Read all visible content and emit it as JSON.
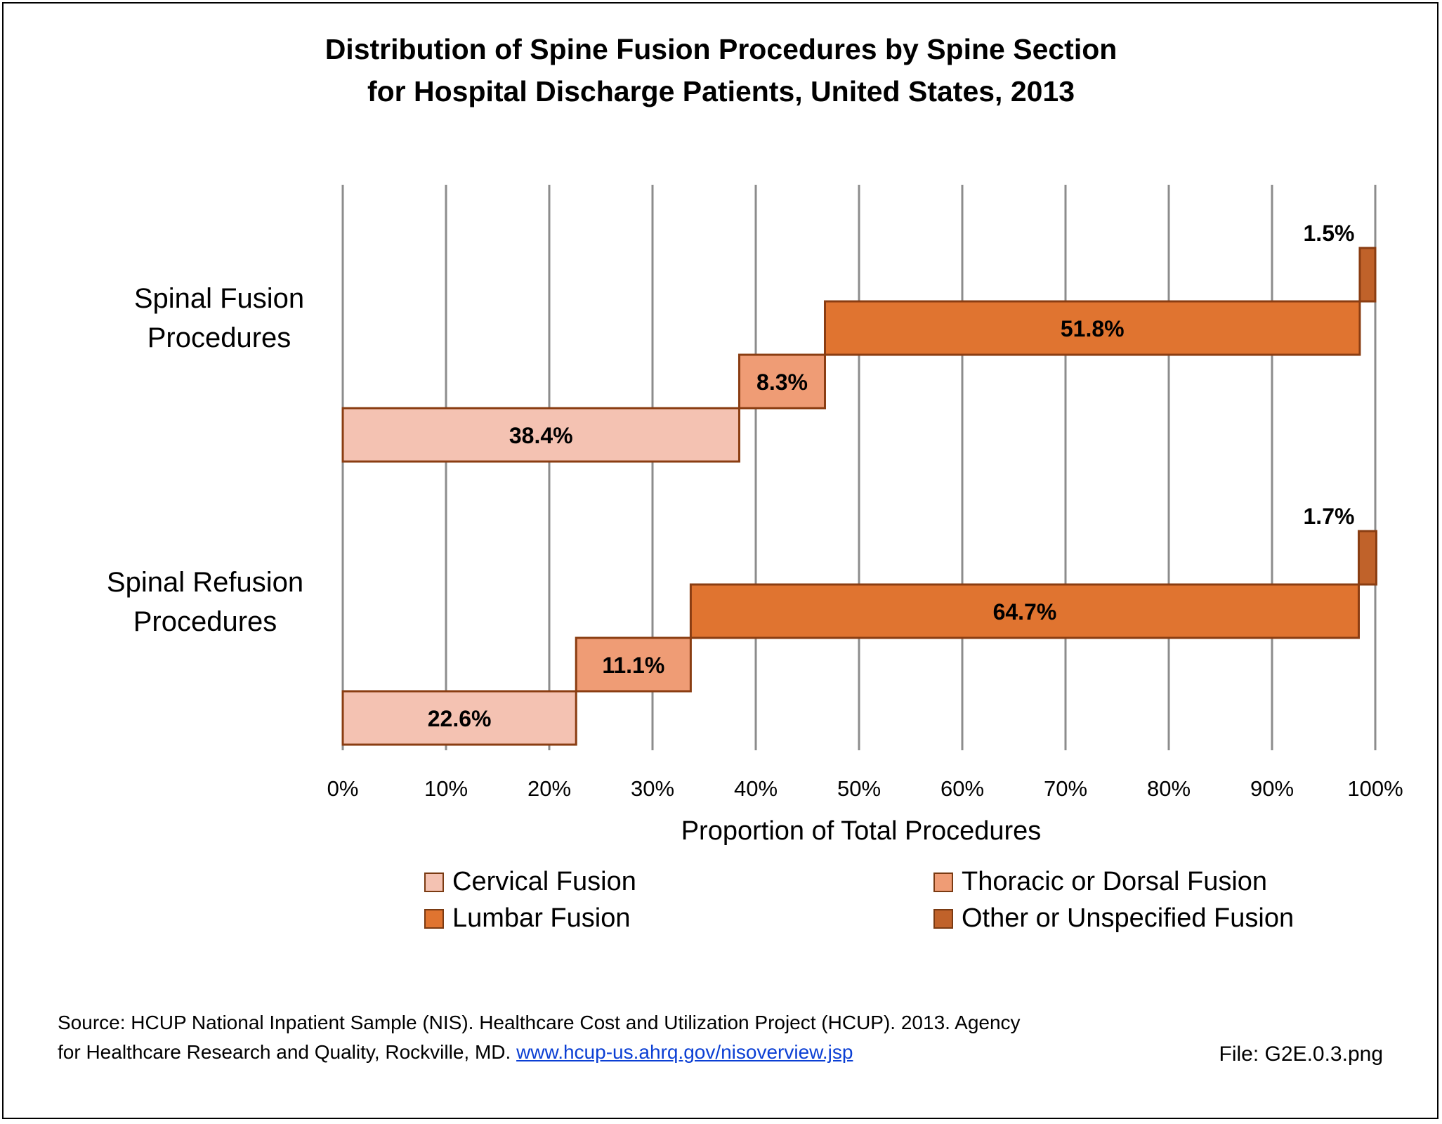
{
  "title_line1": "Distribution of Spine Fusion Procedures by Spine Section",
  "title_line2": "for Hospital Discharge Patients, United States, 2013",
  "chart_data": {
    "type": "bar",
    "orientation": "horizontal",
    "stacked": true,
    "categories": [
      "Spinal Fusion Procedures",
      "Spinal Refusion Procedures"
    ],
    "series": [
      {
        "name": "Cervical Fusion",
        "values": [
          38.4,
          22.6
        ],
        "color": "#f4c2b2"
      },
      {
        "name": "Thoracic or Dorsal Fusion",
        "values": [
          8.3,
          11.1
        ],
        "color": "#ef9c75"
      },
      {
        "name": "Lumbar Fusion",
        "values": [
          51.8,
          64.7
        ],
        "color": "#e07430"
      },
      {
        "name": "Other or Unspecified Fusion",
        "values": [
          1.5,
          1.7
        ],
        "color": "#c0622a"
      }
    ],
    "value_labels": [
      [
        "38.4%",
        "8.3%",
        "51.8%",
        "1.5%"
      ],
      [
        "22.6%",
        "11.1%",
        "64.7%",
        "1.7%"
      ]
    ],
    "category_labels": [
      [
        "Spinal Fusion",
        "Procedures"
      ],
      [
        "Spinal Refusion",
        "Procedures"
      ]
    ],
    "xlabel": "Proportion of Total Procedures",
    "xlim": [
      0,
      100
    ],
    "x_ticks": [
      "0%",
      "10%",
      "20%",
      "30%",
      "40%",
      "50%",
      "60%",
      "70%",
      "80%",
      "90%",
      "100%"
    ],
    "grid": true,
    "legend_position": "bottom"
  },
  "legend": [
    {
      "label": "Cervical Fusion",
      "color": "#f4c2b2"
    },
    {
      "label": "Thoracic or Dorsal Fusion",
      "color": "#ef9c75"
    },
    {
      "label": "Lumbar Fusion",
      "color": "#e07430"
    },
    {
      "label": "Other or Unspecified Fusion",
      "color": "#c0622a"
    }
  ],
  "source_line1": "Source: HCUP National Inpatient Sample (NIS). Healthcare Cost and Utilization Project (HCUP). 2013. Agency",
  "source_line2_prefix": "for Healthcare Research and Quality, Rockville, MD. ",
  "source_link": "www.hcup-us.ahrq.gov/nisoverview.jsp",
  "file_label": "File: G2E.0.3.png"
}
